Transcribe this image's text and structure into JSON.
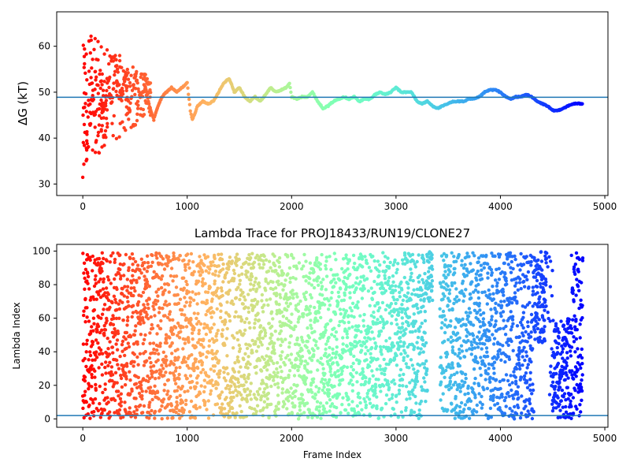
{
  "chart_data": [
    {
      "type": "scatter",
      "title": "",
      "xlabel": "",
      "ylabel": "ΔG (kT)",
      "xlim": [
        -250,
        5030
      ],
      "ylim": [
        27.5,
        67.5
      ],
      "xticks": [
        0,
        1000,
        2000,
        3000,
        4000,
        5000
      ],
      "yticks": [
        30,
        40,
        50,
        60
      ],
      "hline": 48.9,
      "colormap": "rainbow",
      "grid": false,
      "trace": [
        [
          0,
          30
        ],
        [
          5,
          60
        ],
        [
          10,
          34
        ],
        [
          20,
          42
        ],
        [
          30,
          50
        ],
        [
          45,
          38
        ],
        [
          60,
          55
        ],
        [
          75,
          44
        ],
        [
          90,
          52
        ],
        [
          110,
          46
        ],
        [
          130,
          56
        ],
        [
          150,
          40
        ],
        [
          170,
          50
        ],
        [
          200,
          45
        ],
        [
          240,
          53
        ],
        [
          280,
          47
        ],
        [
          320,
          58
        ],
        [
          360,
          48
        ],
        [
          400,
          53
        ],
        [
          450,
          46
        ],
        [
          500,
          54
        ],
        [
          550,
          49
        ],
        [
          600,
          51
        ],
        [
          640,
          47
        ],
        [
          680,
          44
        ],
        [
          720,
          47
        ],
        [
          760,
          49
        ],
        [
          800,
          50
        ],
        [
          850,
          51
        ],
        [
          900,
          50
        ],
        [
          950,
          51
        ],
        [
          1000,
          52
        ],
        [
          1030,
          46
        ],
        [
          1050,
          44
        ],
        [
          1100,
          47
        ],
        [
          1150,
          48
        ],
        [
          1200,
          47.5
        ],
        [
          1250,
          48
        ],
        [
          1300,
          50
        ],
        [
          1350,
          52
        ],
        [
          1400,
          53
        ],
        [
          1420,
          52
        ],
        [
          1450,
          50
        ],
        [
          1500,
          51
        ],
        [
          1550,
          49
        ],
        [
          1600,
          48
        ],
        [
          1650,
          49
        ],
        [
          1700,
          48
        ],
        [
          1750,
          49.5
        ],
        [
          1800,
          51
        ],
        [
          1850,
          50
        ],
        [
          1900,
          50.5
        ],
        [
          1950,
          51
        ],
        [
          1980,
          52
        ],
        [
          2000,
          49
        ],
        [
          2050,
          48.5
        ],
        [
          2100,
          49
        ],
        [
          2150,
          49
        ],
        [
          2200,
          50
        ],
        [
          2250,
          48
        ],
        [
          2300,
          46.5
        ],
        [
          2350,
          47
        ],
        [
          2400,
          48
        ],
        [
          2450,
          48.5
        ],
        [
          2500,
          49
        ],
        [
          2550,
          48.5
        ],
        [
          2600,
          49
        ],
        [
          2650,
          48
        ],
        [
          2700,
          48.5
        ],
        [
          2750,
          48.5
        ],
        [
          2800,
          49.5
        ],
        [
          2850,
          50
        ],
        [
          2900,
          49.5
        ],
        [
          2950,
          50
        ],
        [
          3000,
          51
        ],
        [
          3050,
          50
        ],
        [
          3100,
          50
        ],
        [
          3150,
          50
        ],
        [
          3200,
          48
        ],
        [
          3250,
          47.5
        ],
        [
          3300,
          48
        ],
        [
          3350,
          47
        ],
        [
          3400,
          46.5
        ],
        [
          3450,
          47
        ],
        [
          3500,
          47.5
        ],
        [
          3550,
          48
        ],
        [
          3600,
          48
        ],
        [
          3650,
          48
        ],
        [
          3700,
          48.5
        ],
        [
          3750,
          48.5
        ],
        [
          3800,
          49
        ],
        [
          3850,
          50
        ],
        [
          3900,
          50.5
        ],
        [
          3950,
          50.5
        ],
        [
          4000,
          50
        ],
        [
          4050,
          49
        ],
        [
          4100,
          48.5
        ],
        [
          4150,
          49
        ],
        [
          4200,
          49
        ],
        [
          4250,
          49.5
        ],
        [
          4300,
          49
        ],
        [
          4350,
          48
        ],
        [
          4400,
          47.5
        ],
        [
          4450,
          47
        ],
        [
          4500,
          46
        ],
        [
          4550,
          46
        ],
        [
          4600,
          46.5
        ],
        [
          4650,
          47
        ],
        [
          4700,
          47.5
        ],
        [
          4750,
          47.5
        ],
        [
          4790,
          47.5
        ]
      ]
    },
    {
      "type": "scatter",
      "title": "Lambda Trace for PROJ18433/RUN19/CLONE27",
      "xlabel": "Frame Index",
      "ylabel": "Lambda Index",
      "xlim": [
        -250,
        5030
      ],
      "ylim": [
        -5,
        104
      ],
      "xticks": [
        0,
        1000,
        2000,
        3000,
        4000,
        5000
      ],
      "yticks": [
        0,
        20,
        40,
        60,
        80,
        100
      ],
      "hline": 2,
      "colormap": "rainbow",
      "grid": false,
      "x_range": [
        0,
        4790
      ],
      "y_range": [
        0,
        99
      ],
      "point_count": 4200
    }
  ],
  "colors": {
    "hline": "#1f77b4"
  }
}
